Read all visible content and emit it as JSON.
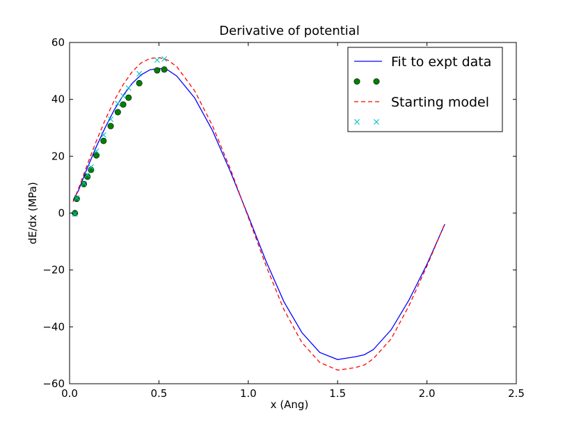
{
  "chart_data": {
    "type": "line",
    "title": "Derivative of potential",
    "xlabel": "x (Ang)",
    "ylabel": "dE/dx (MPa)",
    "xlim": [
      0.0,
      2.5
    ],
    "ylim": [
      -60,
      60
    ],
    "xticks": [
      0.0,
      0.5,
      1.0,
      1.5,
      2.0,
      2.5
    ],
    "xtick_labels": [
      "0.0",
      "0.5",
      "1.0",
      "1.5",
      "2.0",
      "2.5"
    ],
    "yticks": [
      -60,
      -40,
      -20,
      0,
      20,
      40,
      60
    ],
    "ytick_labels": [
      "−60",
      "−40",
      "−20",
      "0",
      "20",
      "40",
      "60"
    ],
    "grid": false,
    "legend_position": "top-right",
    "series": [
      {
        "name": "Fit to expt data",
        "kind": "line",
        "style": "solid",
        "color": "#0000ff",
        "x": [
          0.02,
          0.05,
          0.1,
          0.15,
          0.2,
          0.25,
          0.3,
          0.35,
          0.4,
          0.45,
          0.5,
          0.55,
          0.6,
          0.7,
          0.8,
          0.9,
          1.0,
          1.05,
          1.1,
          1.2,
          1.3,
          1.4,
          1.5,
          1.55,
          1.6,
          1.65,
          1.7,
          1.8,
          1.9,
          2.0,
          2.1
        ],
        "y": [
          4.5,
          8.0,
          16.0,
          23.4,
          30.2,
          36.3,
          41.4,
          45.6,
          48.6,
          50.4,
          50.9,
          50.3,
          48.2,
          40.5,
          29.0,
          14.6,
          -1.0,
          -9.0,
          -17.0,
          -31.2,
          -42.0,
          -49.0,
          -51.5,
          -51.0,
          -50.5,
          -49.8,
          -48.0,
          -41.0,
          -30.5,
          -18.0,
          -3.9
        ]
      },
      {
        "name": "",
        "kind": "marker",
        "marker": "circle",
        "color": "#008000",
        "x": [
          0.03,
          0.04,
          0.08,
          0.1,
          0.12,
          0.15,
          0.19,
          0.23,
          0.27,
          0.3,
          0.33,
          0.39,
          0.49,
          0.53
        ],
        "y": [
          0.0,
          5.0,
          10.2,
          12.8,
          15.2,
          20.3,
          25.4,
          30.6,
          35.5,
          38.2,
          40.6,
          45.7,
          50.2,
          50.5
        ]
      },
      {
        "name": "Starting model",
        "kind": "line",
        "style": "dashed",
        "color": "#ff0000",
        "x": [
          0.02,
          0.05,
          0.1,
          0.15,
          0.2,
          0.25,
          0.3,
          0.35,
          0.4,
          0.45,
          0.5,
          0.55,
          0.6,
          0.7,
          0.8,
          0.9,
          1.0,
          1.05,
          1.1,
          1.2,
          1.3,
          1.4,
          1.5,
          1.55,
          1.6,
          1.65,
          1.7,
          1.8,
          1.9,
          2.0,
          2.1
        ],
        "y": [
          4.0,
          8.6,
          17.2,
          25.4,
          32.9,
          39.6,
          45.2,
          49.7,
          52.8,
          54.4,
          54.7,
          53.8,
          51.5,
          43.0,
          30.7,
          15.5,
          -1.5,
          -10.0,
          -18.6,
          -34.0,
          -45.5,
          -52.5,
          -55.2,
          -54.8,
          -54.3,
          -53.4,
          -51.2,
          -44.2,
          -32.5,
          -18.6,
          -3.7
        ]
      },
      {
        "name": "",
        "kind": "marker",
        "marker": "x",
        "color": "#00bfbf",
        "x": [
          0.03,
          0.04,
          0.08,
          0.1,
          0.12,
          0.15,
          0.19,
          0.23,
          0.27,
          0.3,
          0.33,
          0.39,
          0.49,
          0.53
        ],
        "y": [
          -0.3,
          5.3,
          10.5,
          13.5,
          16.2,
          21.8,
          27.5,
          33.0,
          38.5,
          41.2,
          44.0,
          49.0,
          53.8,
          54.2
        ]
      }
    ],
    "legend": {
      "entries": [
        {
          "label": "Fit to expt data",
          "series": 0
        },
        {
          "label": "",
          "series": 1
        },
        {
          "label": "Starting model",
          "series": 2
        },
        {
          "label": "",
          "series": 3
        }
      ]
    }
  }
}
